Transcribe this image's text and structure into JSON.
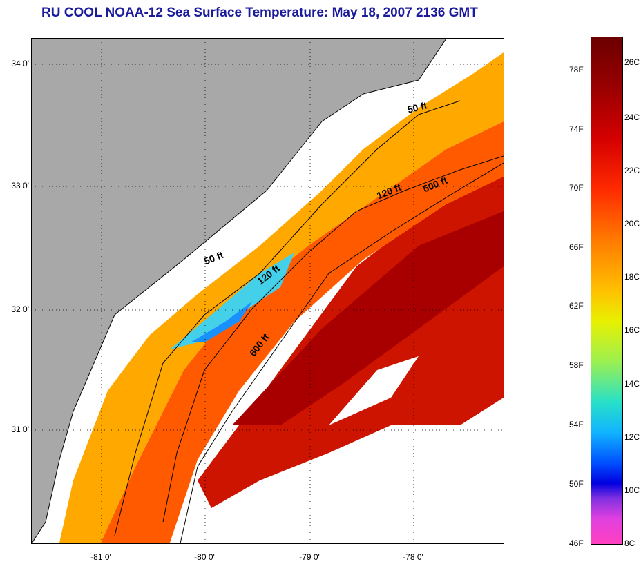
{
  "title": "RU COOL  NOAA-12  Sea Surface Temperature:  May 18, 2007 2136 GMT",
  "latitude_labels": [
    "34 0'",
    "33 0'",
    "32 0'",
    "31 0'"
  ],
  "longitude_labels": [
    "-81 0'",
    "-80 0'",
    "-79 0'",
    "-78 0'"
  ],
  "contour_labels": {
    "c50a": "50 ft",
    "c120a": "120 ft",
    "c600a": "600 ft",
    "c50b": "50 ft",
    "c120b": "120 ft",
    "c600b": "600 ft"
  },
  "colorbar": {
    "fahrenheit": [
      "78F",
      "74F",
      "70F",
      "66F",
      "62F",
      "58F",
      "54F",
      "50F",
      "46F"
    ],
    "celsius": [
      "26C",
      "24C",
      "22C",
      "20C",
      "18C",
      "16C",
      "14C",
      "12C",
      "10C",
      "8C"
    ]
  },
  "colors": {
    "title": "#1a1a9c",
    "land": "#a8a8a8",
    "warm_max": "#6b0000",
    "cold_min": "#ff40c0"
  }
}
